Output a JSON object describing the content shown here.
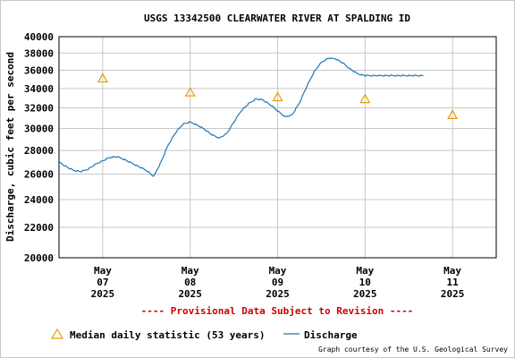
{
  "colors": {
    "discharge": "#1f78b4",
    "median": "#e69f00",
    "provisional": "#cc0000",
    "grid": "#c8c8c8"
  },
  "chart_data": {
    "type": "line",
    "title": "USGS 13342500 CLEARWATER RIVER AT SPALDING ID",
    "ylabel": "Discharge, cubic feet per second",
    "y_scale": "log",
    "ylim": [
      20000,
      40000
    ],
    "yticks": [
      20000,
      22000,
      24000,
      26000,
      28000,
      30000,
      32000,
      34000,
      36000,
      38000,
      40000
    ],
    "ytick_labels": [
      "20000",
      "22000",
      "24000",
      "26000",
      "28000",
      "30000",
      "32000",
      "34000",
      "36000",
      "38000",
      "40000"
    ],
    "xlim": [
      "2025-05-06T12:00",
      "2025-05-11T12:00"
    ],
    "xticks": [
      {
        "at": "2025-05-07T00:00",
        "month": "May",
        "day": "07",
        "year": "2025"
      },
      {
        "at": "2025-05-08T00:00",
        "month": "May",
        "day": "08",
        "year": "2025"
      },
      {
        "at": "2025-05-09T00:00",
        "month": "May",
        "day": "09",
        "year": "2025"
      },
      {
        "at": "2025-05-10T00:00",
        "month": "May",
        "day": "10",
        "year": "2025"
      },
      {
        "at": "2025-05-11T00:00",
        "month": "May",
        "day": "11",
        "year": "2025"
      }
    ],
    "grid": true,
    "series": [
      {
        "name": "Discharge",
        "style": "line",
        "x": [
          "2025-05-06T12:00",
          "2025-05-06T14:00",
          "2025-05-06T16:00",
          "2025-05-06T18:00",
          "2025-05-06T20:00",
          "2025-05-06T22:00",
          "2025-05-07T00:00",
          "2025-05-07T02:00",
          "2025-05-07T04:00",
          "2025-05-07T06:00",
          "2025-05-07T08:00",
          "2025-05-07T10:00",
          "2025-05-07T12:00",
          "2025-05-07T14:00",
          "2025-05-07T16:00",
          "2025-05-07T18:00",
          "2025-05-07T20:00",
          "2025-05-07T22:00",
          "2025-05-08T00:00",
          "2025-05-08T02:00",
          "2025-05-08T04:00",
          "2025-05-08T06:00",
          "2025-05-08T08:00",
          "2025-05-08T10:00",
          "2025-05-08T12:00",
          "2025-05-08T14:00",
          "2025-05-08T16:00",
          "2025-05-08T18:00",
          "2025-05-08T20:00",
          "2025-05-08T22:00",
          "2025-05-09T00:00",
          "2025-05-09T02:00",
          "2025-05-09T04:00",
          "2025-05-09T06:00",
          "2025-05-09T08:00",
          "2025-05-09T10:00",
          "2025-05-09T12:00",
          "2025-05-09T14:00",
          "2025-05-09T16:00",
          "2025-05-09T18:00",
          "2025-05-09T20:00",
          "2025-05-09T22:00",
          "2025-05-10T00:00",
          "2025-05-10T02:00",
          "2025-05-10T04:00",
          "2025-05-10T06:00",
          "2025-05-10T08:00",
          "2025-05-10T10:00",
          "2025-05-10T12:00",
          "2025-05-10T14:00",
          "2025-05-10T16:00"
        ],
        "values": [
          27000,
          26600,
          26300,
          26200,
          26400,
          26800,
          27100,
          27400,
          27450,
          27200,
          26900,
          26600,
          26300,
          25800,
          27000,
          28500,
          29600,
          30400,
          30600,
          30300,
          29900,
          29400,
          29100,
          29500,
          30600,
          31700,
          32400,
          32900,
          32800,
          32300,
          31700,
          31100,
          31300,
          32500,
          34200,
          35800,
          36900,
          37400,
          37300,
          36800,
          36100,
          35600,
          35400,
          35400,
          35400,
          35400,
          35400,
          35400,
          35400,
          35400,
          35400
        ]
      },
      {
        "name": "Median daily statistic (53 years)",
        "style": "marker",
        "x": [
          "2025-05-07T00:00",
          "2025-05-08T00:00",
          "2025-05-09T00:00",
          "2025-05-10T00:00",
          "2025-05-11T00:00"
        ],
        "values": [
          35100,
          33600,
          33100,
          32900,
          31300
        ]
      }
    ]
  },
  "provisional_note": "---- Provisional Data Subject to Revision ----",
  "legend": {
    "median_label": "Median daily statistic (53 years)",
    "discharge_label": "Discharge"
  },
  "credit": "Graph courtesy of the U.S. Geological Survey"
}
